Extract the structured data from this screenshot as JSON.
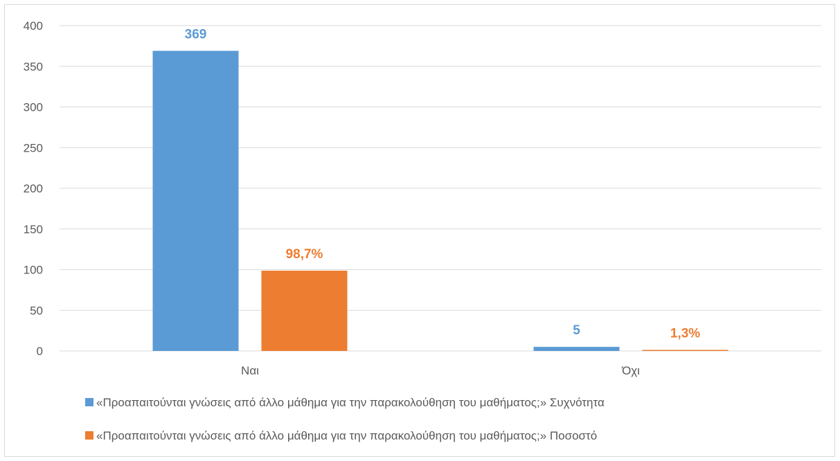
{
  "chart_data": {
    "type": "bar",
    "categories": [
      "Ναι",
      "Όχι"
    ],
    "series": [
      {
        "name": "«Προαπαιτούνται γνώσεις από άλλο μάθημα για την παρακολούθηση του μαθήματος;» Συχνότητα",
        "values": [
          369,
          5
        ],
        "labels": [
          "369",
          "5"
        ],
        "color": "#5b9bd5"
      },
      {
        "name": "«Προαπαιτούνται γνώσεις από άλλο μάθημα για την παρακολούθηση του μαθήματος;» Ποσοστό",
        "values": [
          98.7,
          1.3
        ],
        "labels": [
          "98,7%",
          "1,3%"
        ],
        "color": "#ed7d31"
      }
    ],
    "yticks": [
      "0",
      "50",
      "100",
      "150",
      "200",
      "250",
      "300",
      "350",
      "400"
    ],
    "ylim": [
      0,
      400
    ],
    "grid": true,
    "legend": "bottom"
  }
}
